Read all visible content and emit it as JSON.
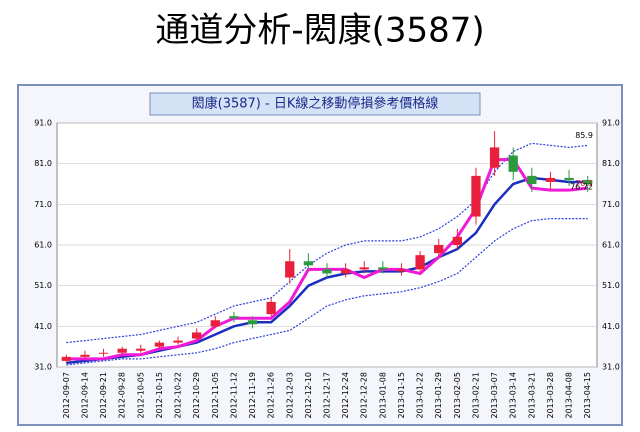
{
  "heading": "通道分析-閎康(3587)",
  "chart_data": {
    "type": "candlestick",
    "title": "閎康(3587) - 日K線之移動停損參考價格線",
    "categories": [
      "2012-09-07",
      "2012-09-14",
      "2012-09-21",
      "2012-09-28",
      "2012-10-05",
      "2012-10-15",
      "2012-10-22",
      "2012-10-29",
      "2012-11-05",
      "2012-11-12",
      "2012-11-19",
      "2012-11-26",
      "2012-12-03",
      "2012-12-10",
      "2012-12-17",
      "2012-12-24",
      "2012-12-28",
      "2013-01-08",
      "2013-01-15",
      "2013-01-22",
      "2013-01-29",
      "2013-02-05",
      "2013-02-21",
      "2013-03-07",
      "2013-03-14",
      "2013-03-21",
      "2013-03-28",
      "2013-04-08",
      "2013-04-15"
    ],
    "open": [
      32.5,
      33.5,
      34.5,
      34.5,
      35,
      36,
      37,
      38,
      41,
      43.5,
      42.5,
      44,
      53,
      57,
      55,
      54,
      55,
      55.5,
      54.5,
      55,
      59,
      61,
      68,
      80,
      83,
      78,
      76.5,
      77.5,
      77
    ],
    "high": [
      34,
      35,
      35.5,
      36,
      36.5,
      37.5,
      38.5,
      40.5,
      43.5,
      44.5,
      43.5,
      48,
      60,
      59,
      56.5,
      56.5,
      57,
      57,
      56.5,
      59.5,
      62.5,
      65,
      80,
      89,
      85,
      80,
      79,
      79.5,
      78
    ],
    "low": [
      32,
      33,
      33.5,
      34,
      34.5,
      35.5,
      36.5,
      37.5,
      40.5,
      42,
      40.5,
      43.5,
      51.5,
      55,
      53,
      53,
      54,
      54,
      53.5,
      54.5,
      58,
      60,
      66,
      78,
      77,
      74,
      74.5,
      75.5,
      74
    ],
    "close": [
      33.5,
      34,
      34.5,
      35.5,
      35.5,
      37,
      37.5,
      39.5,
      42.5,
      43,
      41.5,
      47,
      57,
      56,
      54,
      55,
      55.5,
      55,
      55,
      58.5,
      61,
      63,
      78,
      85,
      79,
      76,
      77.5,
      77,
      76
    ],
    "up_color": "#e8203c",
    "down_color": "#2a9a3c",
    "series": [
      {
        "name": "upper",
        "color": "#2a3fd8",
        "dash": true,
        "values": [
          37,
          37.5,
          38,
          38.5,
          39,
          40,
          41,
          42,
          44,
          46,
          47,
          48,
          52,
          56,
          59,
          61,
          62,
          62,
          62,
          63,
          65,
          68,
          72,
          79,
          84,
          86,
          85.5,
          85,
          85.5
        ]
      },
      {
        "name": "ma",
        "color": "#1a2ec0",
        "width": 2.5,
        "values": [
          32,
          32.5,
          33,
          33.5,
          34,
          35,
          36,
          37,
          39,
          41,
          42,
          42,
          46,
          51,
          53,
          54,
          54.5,
          54.5,
          54.5,
          55.5,
          58,
          60,
          64,
          71,
          76,
          77.5,
          77,
          76.5,
          76.5
        ]
      },
      {
        "name": "lower",
        "color": "#2a3fd8",
        "dash": true,
        "values": [
          31.5,
          32,
          32.5,
          33,
          33,
          33.5,
          34,
          34.5,
          35.5,
          37,
          38,
          39,
          40,
          43,
          46,
          47.5,
          48.5,
          49,
          49.5,
          50.5,
          52,
          54,
          58,
          62,
          65,
          67,
          67.5,
          67.5,
          67.5
        ]
      },
      {
        "name": "stop",
        "color": "#f019d8",
        "width": 3,
        "values": [
          33,
          33,
          33,
          34,
          34,
          35.5,
          36,
          37.5,
          41,
          43,
          43,
          43,
          47,
          55,
          55,
          55,
          53,
          55,
          55,
          54,
          58,
          63,
          70,
          82,
          82,
          75,
          74.5,
          74.5,
          75
        ]
      }
    ],
    "annotations": [
      {
        "label": "85.9",
        "value": 85.9,
        "color": "#000000"
      },
      {
        "label": "76.1",
        "value": 76.1,
        "color": "#e8203c"
      },
      {
        "label": "76.72",
        "value": 76.72,
        "color": "#000000"
      }
    ],
    "ylim": [
      31,
      91
    ],
    "yticks": [
      {
        "value": 31,
        "label": "31.0"
      },
      {
        "value": 41,
        "label": "41.0"
      },
      {
        "value": 51,
        "label": "51.0"
      },
      {
        "value": 61,
        "label": "61.0"
      },
      {
        "value": 71,
        "label": "71.0"
      },
      {
        "value": 81,
        "label": "81.0"
      },
      {
        "value": 91,
        "label": "91.0"
      }
    ],
    "grid": true
  }
}
